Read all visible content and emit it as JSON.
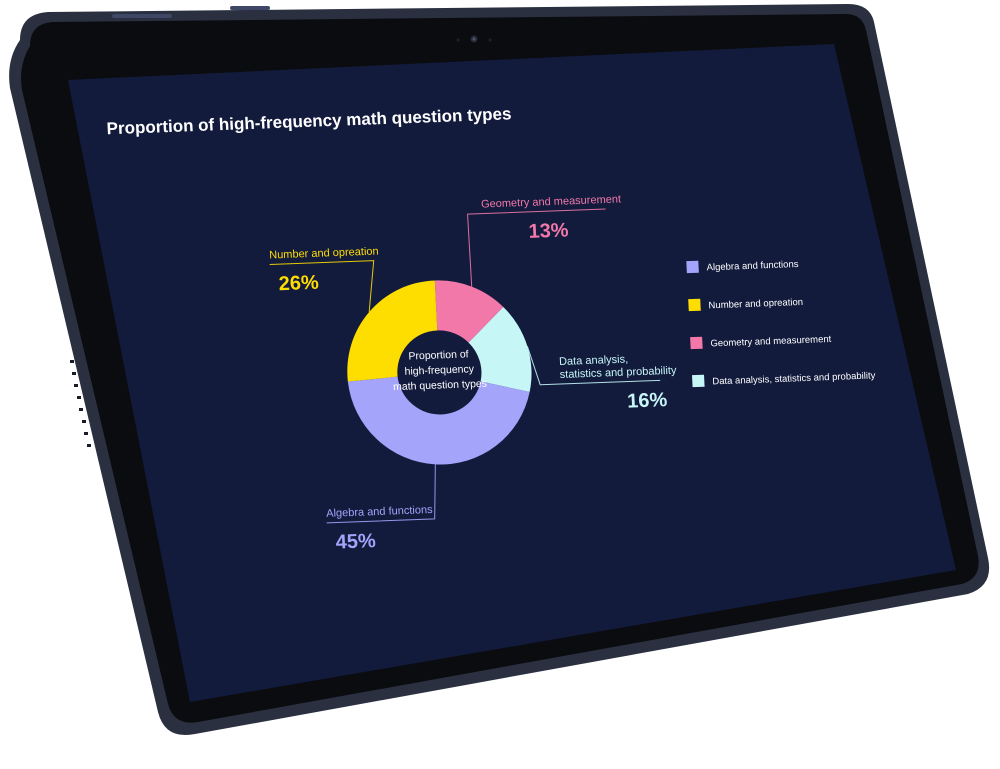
{
  "screen": {
    "title": "Proportion of high-frequency math question types",
    "background": "#131b3d"
  },
  "chart_data": {
    "type": "pie",
    "variant": "donut",
    "title": "Proportion of high-frequency math question types",
    "center_label": [
      "Proportion of",
      "high-frequency",
      "math question types"
    ],
    "legend_position": "right",
    "slices": [
      {
        "name": "Geometry and measurement",
        "value": 13,
        "label": "13%",
        "color": "#f178a8"
      },
      {
        "name": "Data analysis, statistics and probability",
        "label_lines": [
          "Data analysis,",
          "statistics and probability"
        ],
        "value": 16,
        "label": "16%",
        "color": "#c7f6f7"
      },
      {
        "name": "Algebra and functions",
        "value": 45,
        "label": "45%",
        "color": "#a4a4fb"
      },
      {
        "name": "Number and opreation",
        "value": 26,
        "label": "26%",
        "color": "#fedd00"
      }
    ],
    "legend": [
      {
        "name": "Algebra and functions",
        "color": "#a4a4fb"
      },
      {
        "name": "Number and opreation",
        "color": "#fedd00"
      },
      {
        "name": "Geometry and measurement",
        "color": "#f178a8"
      },
      {
        "name": "Data analysis, statistics and probability",
        "color": "#c7f6f7"
      }
    ]
  }
}
